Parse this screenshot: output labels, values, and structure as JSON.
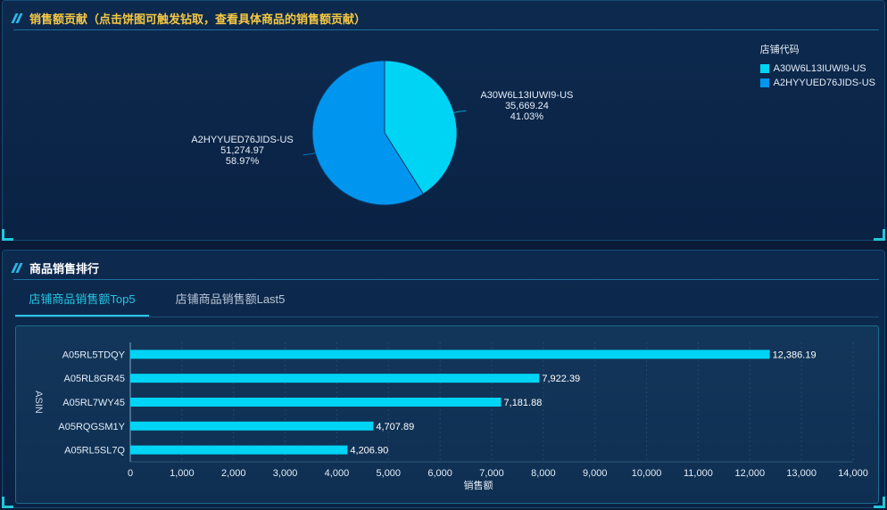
{
  "top_panel": {
    "title": "销售额贡献（点击饼图可触发钻取，查看具体商品的销售额贡献）",
    "legend_title": "店铺代码"
  },
  "bottom_panel": {
    "title": "商品销售排行",
    "tabs": [
      {
        "label": "店铺商品销售额Top5",
        "active": true
      },
      {
        "label": "店铺商品销售额Last5",
        "active": false
      }
    ]
  },
  "colors": {
    "cyan": "#00d4f5",
    "blue": "#0096f0",
    "bar": "#00d4f5"
  },
  "chart_data": [
    {
      "type": "pie",
      "legend_title": "店铺代码",
      "legend_position": "top-right",
      "slices": [
        {
          "label": "A30W6L13IUWI9-US",
          "value": "35,669.24",
          "percent": "41.03%",
          "value_num": 35669.24,
          "color": "#00d4f5"
        },
        {
          "label": "A2HYYUED76JIDS-US",
          "value": "51,274.97",
          "percent": "58.97%",
          "value_num": 51274.97,
          "color": "#0096f0"
        }
      ]
    },
    {
      "type": "bar",
      "orientation": "horizontal",
      "categories": [
        "A05RL5TDQY",
        "A05RL8GR45",
        "A05RL7WY45",
        "A05RQGSM1Y",
        "A05RL5SL7Q"
      ],
      "values": [
        12386.19,
        7922.39,
        7181.88,
        4707.89,
        4206.9
      ],
      "value_labels": [
        "12,386.19",
        "7,922.39",
        "7,181.88",
        "4,707.89",
        "4,206.90"
      ],
      "xlabel": "销售额",
      "ylabel": "ASIN",
      "xlim": [
        0,
        14000
      ],
      "ticks": [
        "0",
        "1,000",
        "2,000",
        "3,000",
        "4,000",
        "5,000",
        "6,000",
        "7,000",
        "8,000",
        "9,000",
        "10,000",
        "11,000",
        "12,000",
        "13,000",
        "14,000"
      ],
      "grid": true
    }
  ]
}
